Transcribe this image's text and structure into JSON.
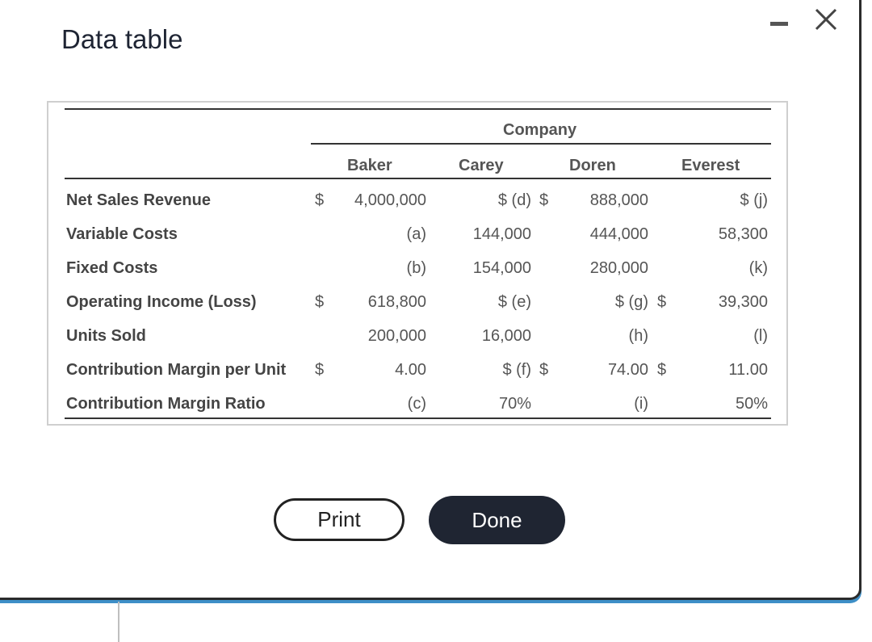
{
  "window": {
    "title": "Data table",
    "minimize_label": "—",
    "close_label": "×"
  },
  "table": {
    "group_header": "Company",
    "columns": [
      "Baker",
      "Carey",
      "Doren",
      "Everest"
    ],
    "rows": [
      {
        "label": "Net Sales Revenue",
        "baker_sign": "$",
        "baker": "4,000,000",
        "carey": "$ (d)",
        "carey_sign": "$",
        "doren": "888,000",
        "doren_sign": "",
        "everest": "$ (j)"
      },
      {
        "label": "Variable Costs",
        "baker_sign": "",
        "baker": "(a)",
        "carey": "144,000",
        "carey_sign": "",
        "doren": "444,000",
        "doren_sign": "",
        "everest": "58,300"
      },
      {
        "label": "Fixed Costs",
        "baker_sign": "",
        "baker": "(b)",
        "carey": "154,000",
        "carey_sign": "",
        "doren": "280,000",
        "doren_sign": "",
        "everest": "(k)"
      },
      {
        "label": "Operating Income (Loss)",
        "baker_sign": "$",
        "baker": "618,800",
        "carey": "$ (e)",
        "carey_sign": "",
        "doren": "$ (g)",
        "doren_sign": "$",
        "everest": "39,300"
      },
      {
        "label": "Units Sold",
        "baker_sign": "",
        "baker": "200,000",
        "carey": "16,000",
        "carey_sign": "",
        "doren": "(h)",
        "doren_sign": "",
        "everest": "(l)"
      },
      {
        "label": "Contribution Margin per Unit",
        "baker_sign": "$",
        "baker": "4.00",
        "carey": "$ (f)",
        "carey_sign": "$",
        "doren": "74.00",
        "doren_sign": "$",
        "everest": "11.00"
      },
      {
        "label": "Contribution Margin Ratio",
        "baker_sign": "",
        "baker": "(c)",
        "carey": "70%",
        "carey_sign": "",
        "doren": "(i)",
        "doren_sign": "",
        "everest": "50%"
      }
    ]
  },
  "buttons": {
    "print": "Print",
    "done": "Done"
  },
  "colors": {
    "done_bg": "#1f2532",
    "accent_border": "#3e8fc7"
  }
}
